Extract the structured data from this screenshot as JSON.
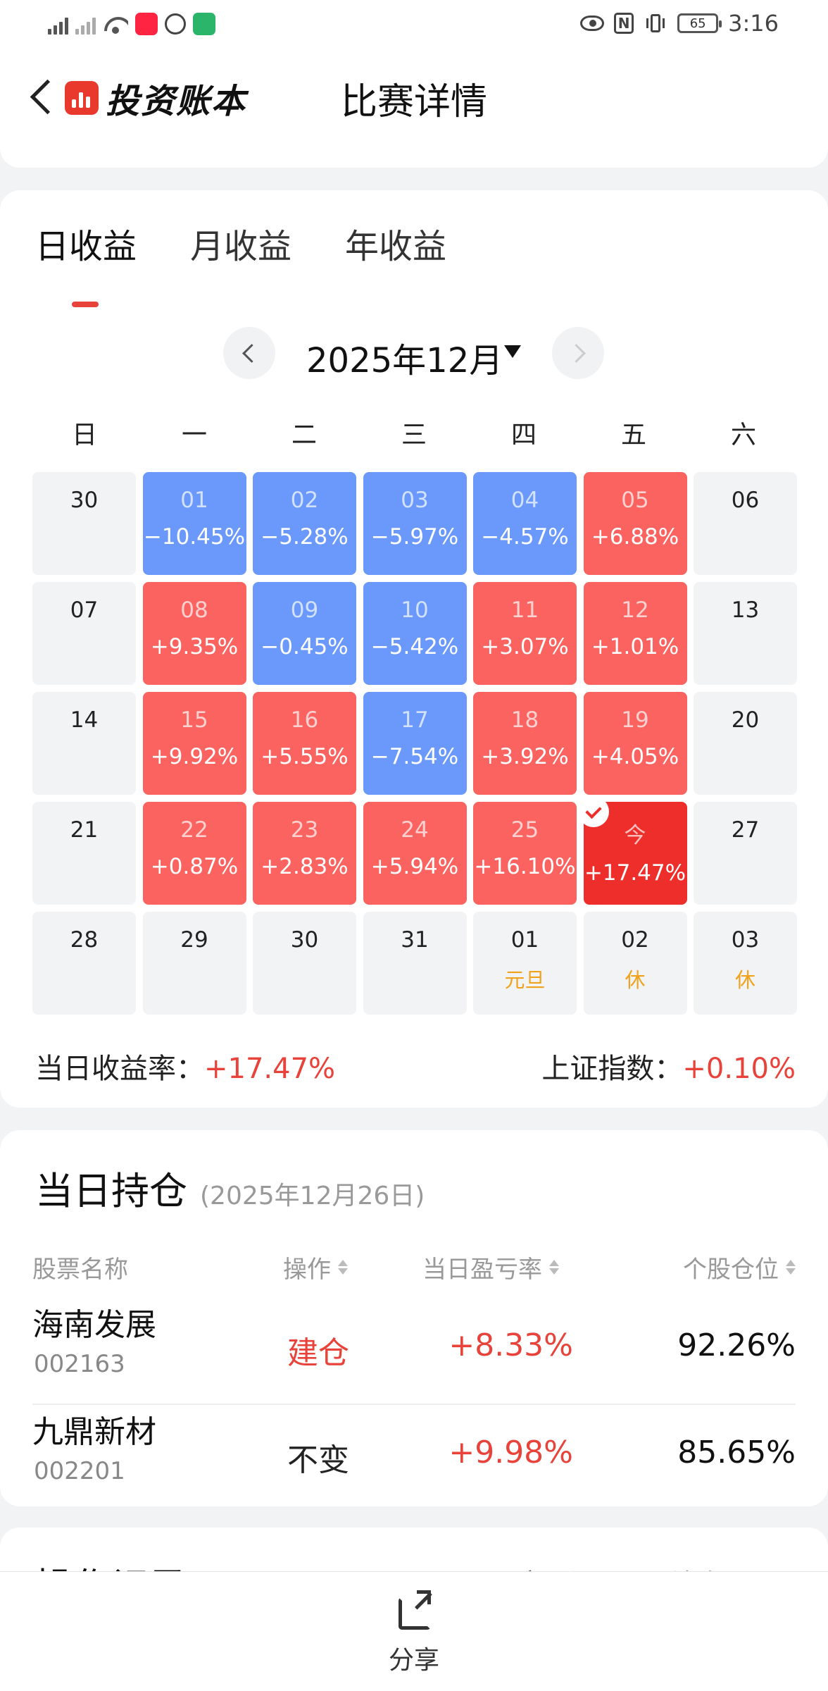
{
  "status_bar": {
    "time": "3:16",
    "battery": "65",
    "network": "4G",
    "app_badge": "小红书"
  },
  "nav": {
    "brand": "投资账本",
    "title": "比赛详情"
  },
  "tabs": [
    {
      "label": "日收益",
      "active": true
    },
    {
      "label": "月收益",
      "active": false
    },
    {
      "label": "年收益",
      "active": false
    }
  ],
  "calendar": {
    "month": "2025年12月",
    "weekdays": [
      "日",
      "一",
      "二",
      "三",
      "四",
      "五",
      "六"
    ],
    "days": [
      {
        "d": "30",
        "rate": "",
        "state": "none"
      },
      {
        "d": "01",
        "rate": "−10.45%",
        "state": "down"
      },
      {
        "d": "02",
        "rate": "−5.28%",
        "state": "down"
      },
      {
        "d": "03",
        "rate": "−5.97%",
        "state": "down"
      },
      {
        "d": "04",
        "rate": "−4.57%",
        "state": "down"
      },
      {
        "d": "05",
        "rate": "+6.88%",
        "state": "up"
      },
      {
        "d": "06",
        "rate": "",
        "state": "none"
      },
      {
        "d": "07",
        "rate": "",
        "state": "none"
      },
      {
        "d": "08",
        "rate": "+9.35%",
        "state": "up"
      },
      {
        "d": "09",
        "rate": "−0.45%",
        "state": "down"
      },
      {
        "d": "10",
        "rate": "−5.42%",
        "state": "down"
      },
      {
        "d": "11",
        "rate": "+3.07%",
        "state": "up"
      },
      {
        "d": "12",
        "rate": "+1.01%",
        "state": "up"
      },
      {
        "d": "13",
        "rate": "",
        "state": "none"
      },
      {
        "d": "14",
        "rate": "",
        "state": "none"
      },
      {
        "d": "15",
        "rate": "+9.92%",
        "state": "up"
      },
      {
        "d": "16",
        "rate": "+5.55%",
        "state": "up"
      },
      {
        "d": "17",
        "rate": "−7.54%",
        "state": "down"
      },
      {
        "d": "18",
        "rate": "+3.92%",
        "state": "up"
      },
      {
        "d": "19",
        "rate": "+4.05%",
        "state": "up"
      },
      {
        "d": "20",
        "rate": "",
        "state": "none"
      },
      {
        "d": "21",
        "rate": "",
        "state": "none"
      },
      {
        "d": "22",
        "rate": "+0.87%",
        "state": "up"
      },
      {
        "d": "23",
        "rate": "+2.83%",
        "state": "up"
      },
      {
        "d": "24",
        "rate": "+5.94%",
        "state": "up"
      },
      {
        "d": "25",
        "rate": "+16.10%",
        "state": "up"
      },
      {
        "d": "今",
        "rate": "+17.47%",
        "state": "today"
      },
      {
        "d": "27",
        "rate": "",
        "state": "none"
      },
      {
        "d": "28",
        "rate": "",
        "state": "none"
      },
      {
        "d": "29",
        "rate": "",
        "state": "none"
      },
      {
        "d": "30",
        "rate": "",
        "state": "none"
      },
      {
        "d": "31",
        "rate": "",
        "state": "none"
      },
      {
        "d": "01",
        "rate": "",
        "state": "none",
        "holiday": "元旦"
      },
      {
        "d": "02",
        "rate": "",
        "state": "none",
        "holiday": "休"
      },
      {
        "d": "03",
        "rate": "",
        "state": "none",
        "holiday": "休"
      }
    ]
  },
  "summary": {
    "daily_label": "当日收益率：",
    "daily_value": "+17.47%",
    "index_label": "上证指数：",
    "index_value": "+0.10%"
  },
  "holdings": {
    "title": "当日持仓",
    "date": "(2025年12月26日)",
    "columns": [
      "股票名称",
      "操作",
      "当日盈亏率",
      "个股仓位"
    ],
    "rows": [
      {
        "name": "海南发展",
        "code": "002163",
        "op": "建仓",
        "op_color": "#e8433a",
        "pl": "+8.33%",
        "pos": "92.26%"
      },
      {
        "name": "九鼎新材",
        "code": "002201",
        "op": "不变",
        "op_color": "#222222",
        "pl": "+9.98%",
        "pos": "85.65%"
      }
    ]
  },
  "ops": {
    "title": "操作记录",
    "link1": "交易记录",
    "link2": "清仓股票"
  },
  "bottom": {
    "share": "分享"
  },
  "colors": {
    "up": "#fb6360",
    "down": "#6a99fb",
    "today": "#ee2e2a",
    "accent": "#e8433a",
    "holiday": "#f0a21c"
  }
}
